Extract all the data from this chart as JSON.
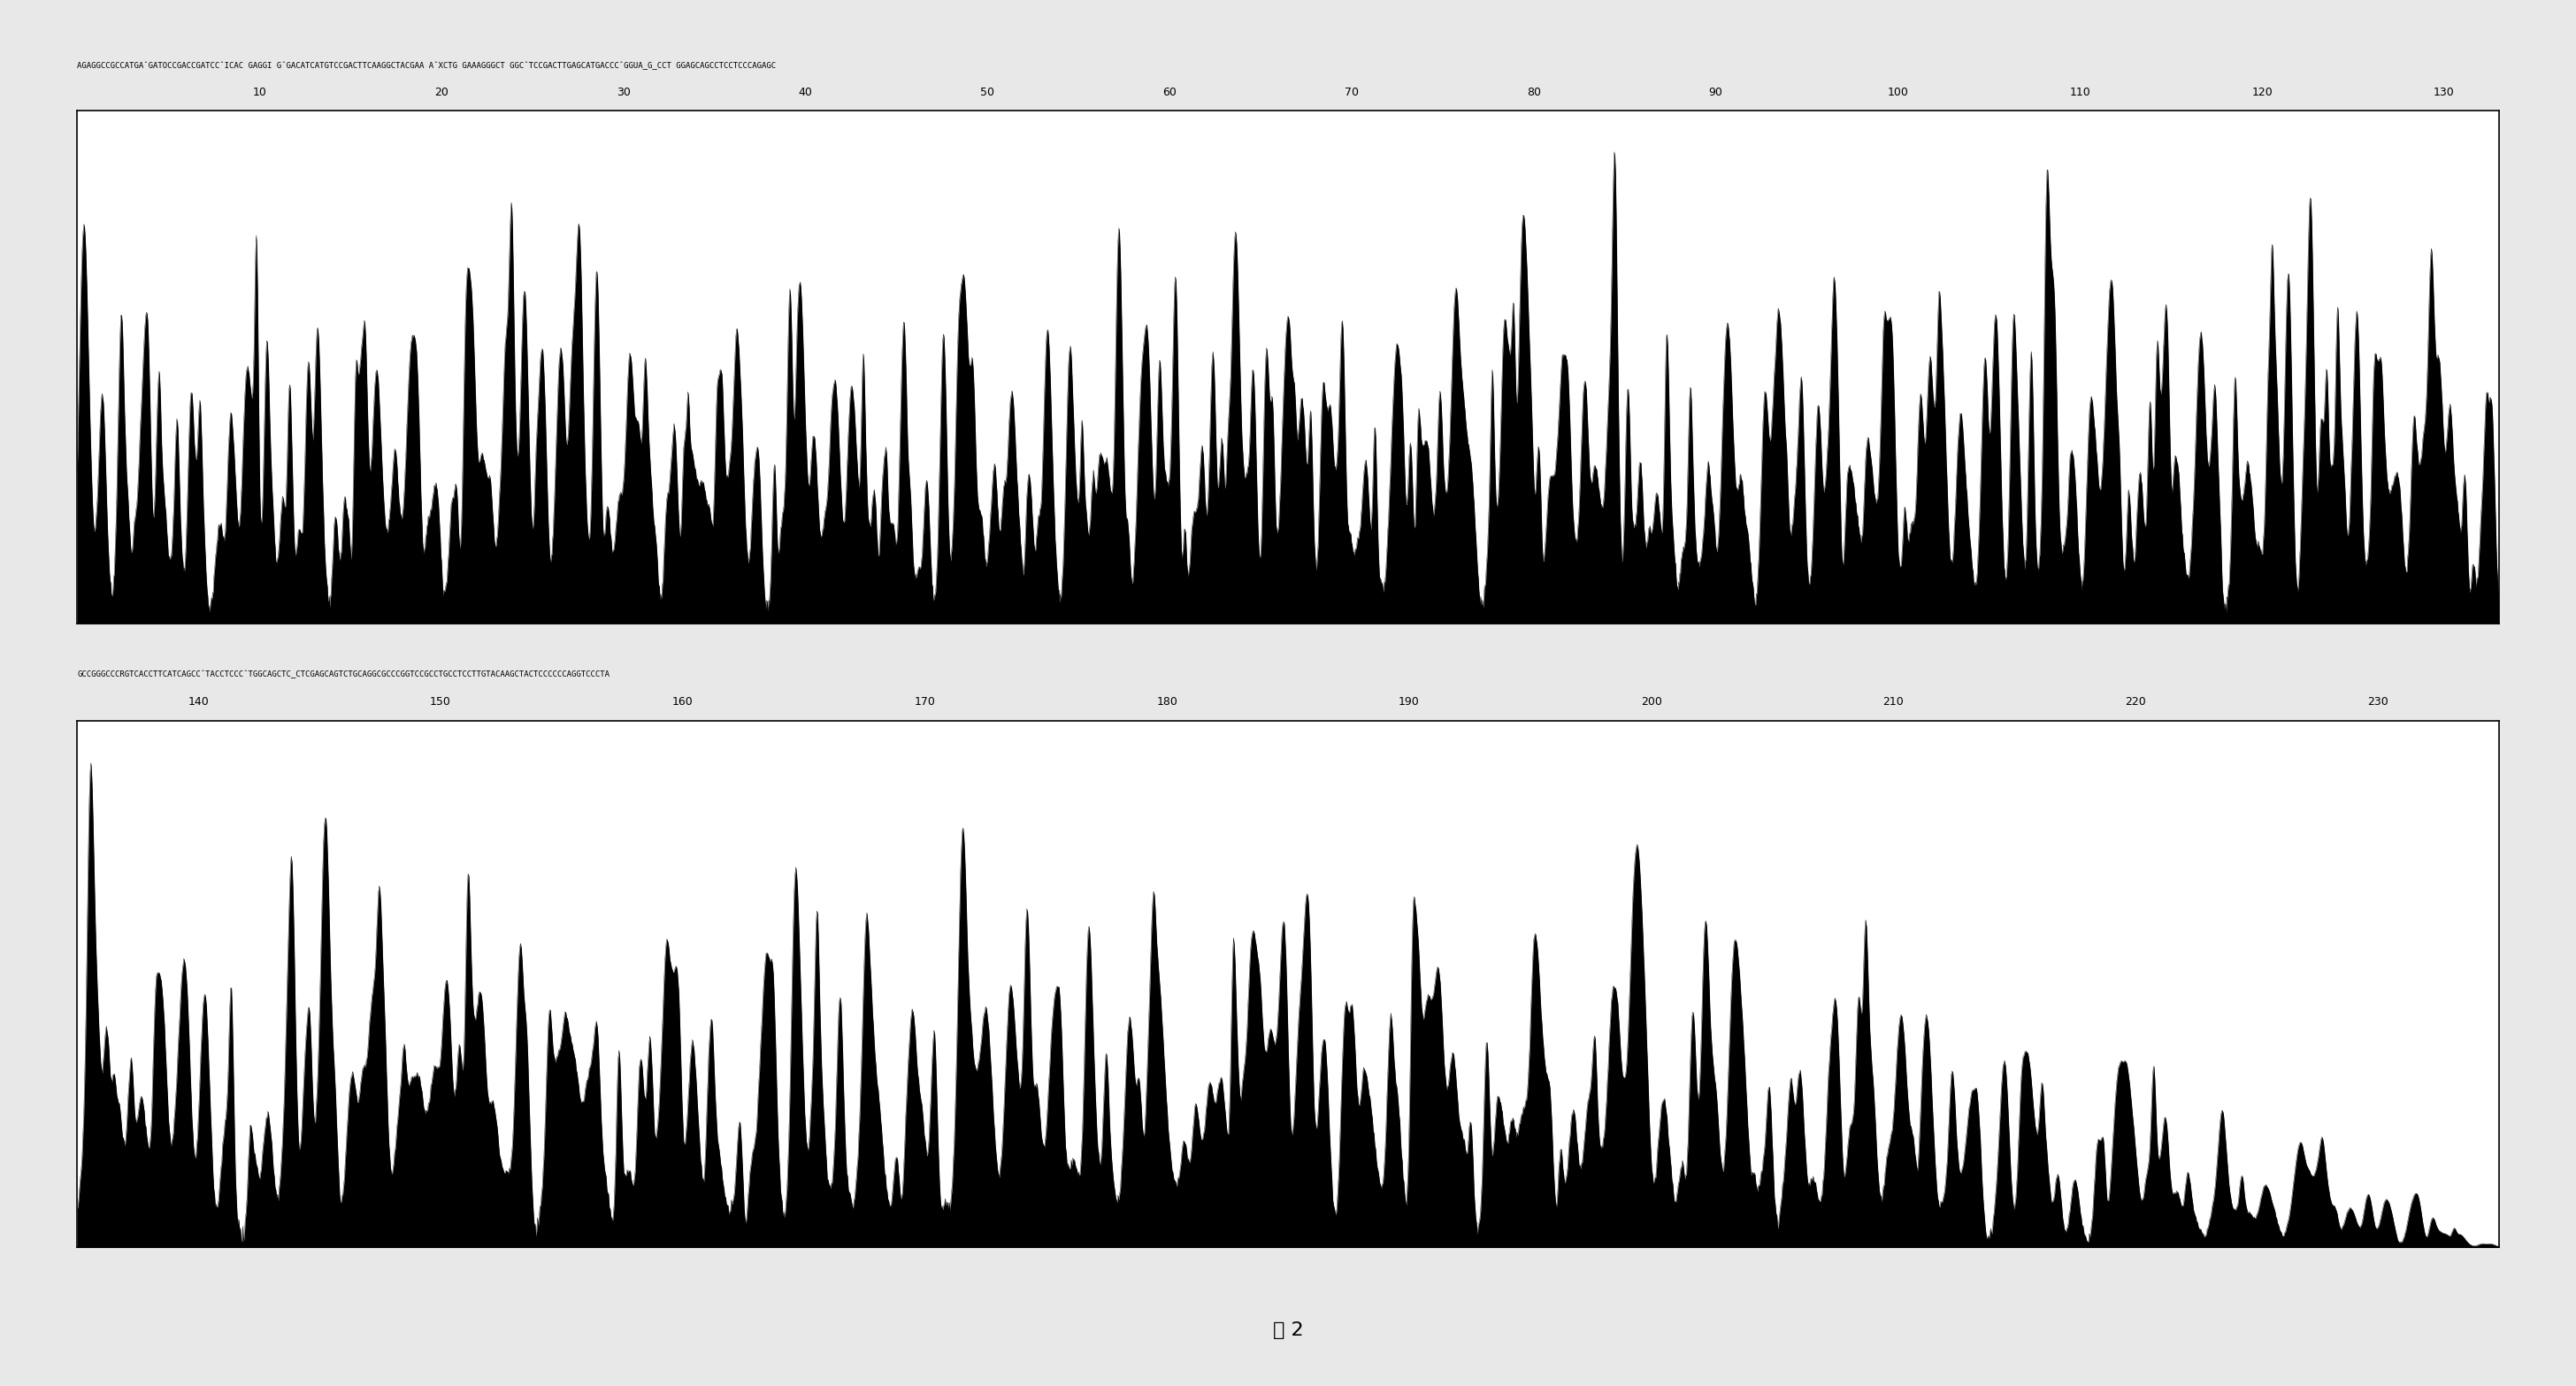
{
  "figure_width": 29.12,
  "figure_height": 15.67,
  "background_color": "#ffffff",
  "figure_bg": "#e8e8e8",
  "panel1": {
    "sequence_text": "AGAGGCCGCCATGAˆGATOCCGACCGATCCˆICAC GAGGI GˆGACATCATGTCCGACTTCAAGGCTACGAA AˆXCTG GAAAGGGCT GGCˆTCCGACTTGAGCATGACCCˆGGUA_G_CCT GGAGCAGCCTCCTCCCAGAGC",
    "tick_positions": [
      10,
      20,
      30,
      40,
      50,
      60,
      70,
      80,
      90,
      100,
      110,
      120,
      130
    ],
    "tick_labels": [
      "10",
      "20",
      "30",
      "40",
      "50",
      "60",
      "70",
      "80",
      "90",
      "100",
      "110",
      "120",
      "130"
    ],
    "n_bases": 133
  },
  "panel2": {
    "sequence_text": "GCCGGGCCCRGTCACCTTCATCAGCCˆTACCTCCCˆTGGCAGCTC_CTCGAGCAGTCTGCAGGCGCCCGGTCCGCCTGCCTCCTTGTACAAGCTACTCCCCCCAGGTCCCTA",
    "tick_positions": [
      140,
      150,
      160,
      170,
      180,
      190,
      200,
      210,
      220,
      230
    ],
    "tick_labels": [
      "140",
      "150",
      "160",
      "170",
      "180",
      "190",
      "200",
      "210",
      "220",
      "230"
    ],
    "n_bases": 100
  },
  "figure_label": "图 2",
  "label_fontsize": 16,
  "seq_fontsize": 6.5,
  "tick_fontsize": 9,
  "signal_color": "#000000",
  "panel_bg": "#ffffff"
}
